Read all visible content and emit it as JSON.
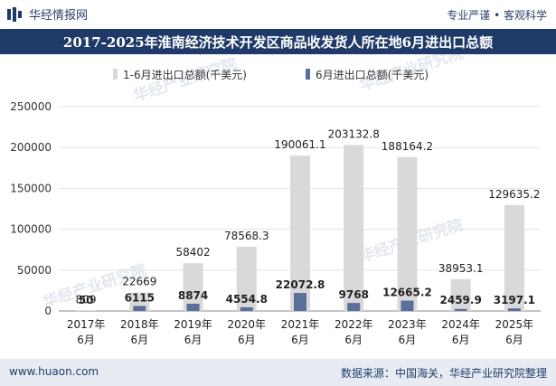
{
  "header": {
    "brand_name": "华经情报网",
    "tagline": "专业严谨 • 客观科学"
  },
  "watermark": "华经产业研究院",
  "footer": {
    "website": "www.huaon.com",
    "source": "数据来源：中国海关，华经产业研究院整理"
  },
  "colors": {
    "title_bg": "#1f3a68",
    "series1": "#d9d9d9",
    "series2": "#5a6f9a"
  },
  "chart_data": {
    "type": "bar",
    "title": "2017-2025年淮南经济技术开发区商品收发货人所在地6月进出口总额",
    "categories": [
      "2017年6月",
      "2018年6月",
      "2019年6月",
      "2020年6月",
      "2021年6月",
      "2022年6月",
      "2023年6月",
      "2024年6月",
      "2025年6月"
    ],
    "category_lines": [
      [
        "2017年",
        "6月"
      ],
      [
        "2018年",
        "6月"
      ],
      [
        "2019年",
        "6月"
      ],
      [
        "2020年",
        "6月"
      ],
      [
        "2021年",
        "6月"
      ],
      [
        "2022年",
        "6月"
      ],
      [
        "2023年",
        "6月"
      ],
      [
        "2024年",
        "6月"
      ],
      [
        "2025年",
        "6月"
      ]
    ],
    "series": [
      {
        "name": "1-6月进出口总额(千美元)",
        "values": [
          809,
          22669,
          58402,
          78568.3,
          190061.1,
          203132.8,
          188164.2,
          38953.1,
          129635.2
        ],
        "labels": [
          "809",
          "22669",
          "58402",
          "78568.3",
          "190061.1",
          "203132.8",
          "188164.2",
          "38953.1",
          "129635.2"
        ]
      },
      {
        "name": "6月进出口总额(千美元)",
        "values": [
          50,
          6115,
          8874,
          4554.8,
          22072.8,
          9768,
          12665.2,
          2459.9,
          3197.1
        ],
        "labels": [
          "50",
          "6115",
          "8874",
          "4554.8",
          "22072.8",
          "9768",
          "12665.2",
          "2459.9",
          "3197.1"
        ]
      }
    ],
    "ylim": [
      0,
      250000
    ],
    "yticks": [
      "0",
      "50000",
      "100000",
      "150000",
      "200000",
      "250000"
    ],
    "xlabel": "",
    "ylabel": "",
    "legend_position": "top-center"
  }
}
